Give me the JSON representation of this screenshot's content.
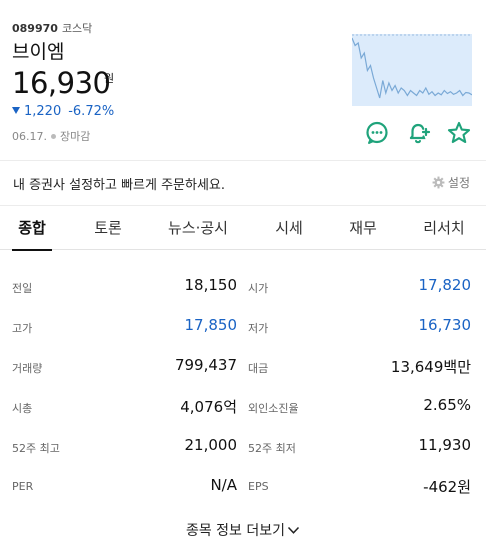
{
  "stock": {
    "code": "089970",
    "market": "코스닥",
    "name": "브이엠",
    "price": "16,930",
    "price_unit": "원",
    "change_amount": "1,220",
    "change_percent": "-6.72%",
    "date": "06.17.",
    "status": "장마감",
    "down_color": "#1a63c4"
  },
  "sparkline": {
    "fill_color": "#dcebfb",
    "line_color": "#7aa9d6",
    "values": [
      19.2,
      18.9,
      19.0,
      18.4,
      18.6,
      17.9,
      18.1,
      17.6,
      17.2,
      16.8,
      17.5,
      17.0,
      17.4,
      17.1,
      17.3,
      17.0,
      17.2,
      17.1,
      16.9,
      17.1,
      17.0,
      16.9,
      17.1,
      17.0,
      17.2,
      16.95,
      17.05,
      16.9,
      17.0,
      16.93,
      17.1,
      16.98,
      17.05,
      16.95,
      17.0,
      17.1,
      16.9,
      17.02,
      17.0,
      16.93
    ]
  },
  "actions": [
    {
      "name": "discussion-icon",
      "color": "#1fa37b"
    },
    {
      "name": "alarm-add-icon",
      "color": "#1fa37b"
    },
    {
      "name": "favorite-star-icon",
      "color": "#1fa37b"
    }
  ],
  "broker": {
    "text": "내 증권사 설정하고 빠르게 주문하세요.",
    "settings_label": "설정"
  },
  "tabs": [
    {
      "label": "종합",
      "active": true
    },
    {
      "label": "토론",
      "active": false
    },
    {
      "label": "뉴스·공시",
      "active": false
    },
    {
      "label": "시세",
      "active": false
    },
    {
      "label": "재무",
      "active": false
    },
    {
      "label": "리서치",
      "active": false
    }
  ],
  "info_rows": [
    {
      "left_label": "전일",
      "left_value": "18,150",
      "left_blue": false,
      "right_label": "시가",
      "right_value": "17,820",
      "right_blue": true
    },
    {
      "left_label": "고가",
      "left_value": "17,850",
      "left_blue": true,
      "right_label": "저가",
      "right_value": "16,730",
      "right_blue": true
    },
    {
      "left_label": "거래량",
      "left_value": "799,437",
      "left_blue": false,
      "right_label": "대금",
      "right_value": "13,649백만",
      "right_blue": false
    },
    {
      "left_label": "시총",
      "left_value": "4,076억",
      "left_blue": false,
      "right_label": "외인소진율",
      "right_value": "2.65%",
      "right_blue": false
    },
    {
      "left_label": "52주 최고",
      "left_value": "21,000",
      "left_blue": false,
      "right_label": "52주 최저",
      "right_value": "11,930",
      "right_blue": false
    },
    {
      "left_label": "PER",
      "left_value": "N/A",
      "left_blue": false,
      "right_label": "EPS",
      "right_value": "-462원",
      "right_blue": false
    }
  ],
  "more_label": "종목 정보 더보기"
}
